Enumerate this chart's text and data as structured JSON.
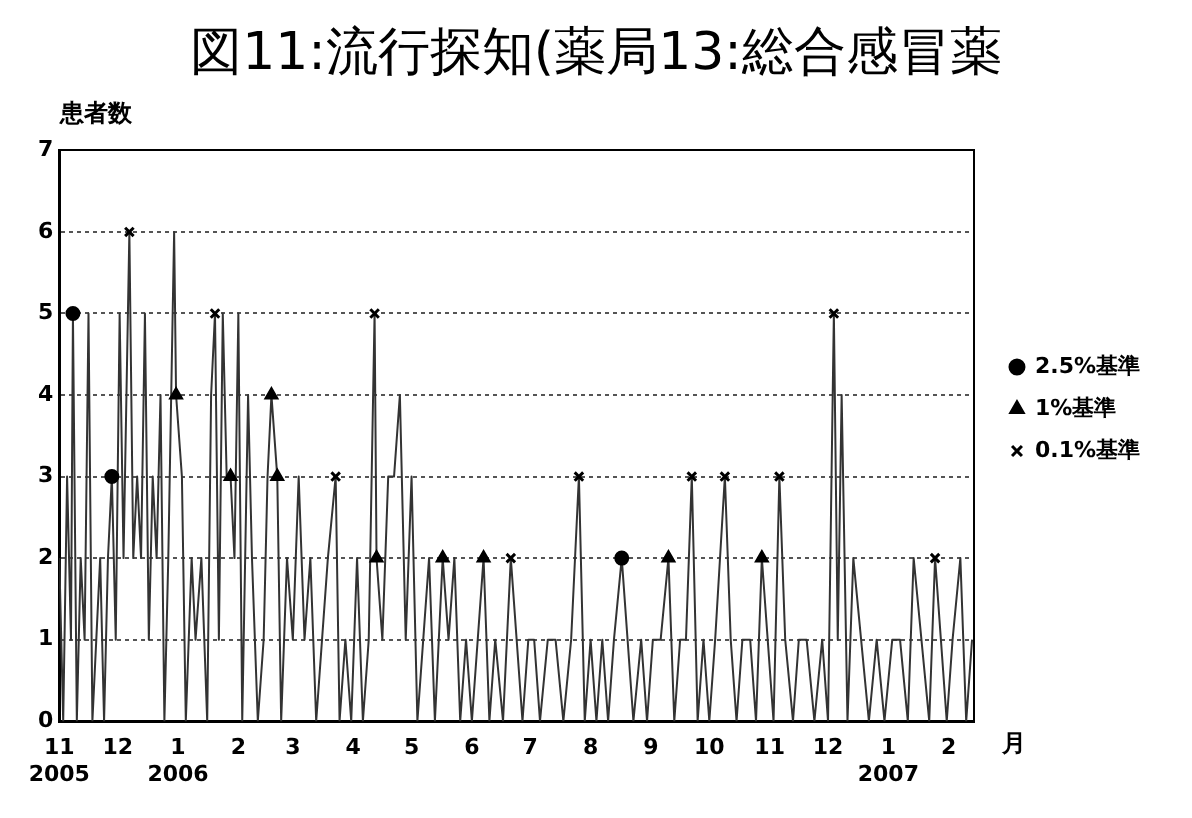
{
  "chart_data": {
    "type": "line",
    "title": "図11:流行探知(薬局13:総合感冒薬",
    "ylabel": "患者数",
    "xlabel": "月",
    "xlim": [
      "2005-11-01",
      "2007-02-14"
    ],
    "xticks": [
      {
        "value": "2005-11-01",
        "label": "11\n2005"
      },
      {
        "value": "2005-12-01",
        "label": "12"
      },
      {
        "value": "2006-01-01",
        "label": "1\n2006"
      },
      {
        "value": "2006-02-01",
        "label": "2"
      },
      {
        "value": "2006-03-01",
        "label": "3"
      },
      {
        "value": "2006-04-01",
        "label": "4"
      },
      {
        "value": "2006-05-01",
        "label": "5"
      },
      {
        "value": "2006-06-01",
        "label": "6"
      },
      {
        "value": "2006-07-01",
        "label": "7"
      },
      {
        "value": "2006-08-01",
        "label": "8"
      },
      {
        "value": "2006-09-01",
        "label": "9"
      },
      {
        "value": "2006-10-01",
        "label": "10"
      },
      {
        "value": "2006-11-01",
        "label": "11"
      },
      {
        "value": "2006-12-01",
        "label": "12"
      },
      {
        "value": "2007-01-01",
        "label": "1\n2007"
      },
      {
        "value": "2007-02-01",
        "label": "2"
      }
    ],
    "ylim": [
      0,
      7
    ],
    "yticks": [
      0,
      1,
      2,
      3,
      4,
      5,
      6,
      7
    ],
    "grid": "y",
    "legend": "right",
    "series": [
      {
        "type": "line",
        "color": "#333333",
        "marker": "none",
        "x": [
          "2005-11-01",
          "2005-11-03",
          "2005-11-05",
          "2005-11-07",
          "2005-11-08",
          "2005-11-10",
          "2005-11-12",
          "2005-11-14",
          "2005-11-16",
          "2005-11-18",
          "2005-11-20",
          "2005-11-22",
          "2005-11-24",
          "2005-11-26",
          "2005-11-28",
          "2005-11-30",
          "2005-12-02",
          "2005-12-04",
          "2005-12-07",
          "2005-12-09",
          "2005-12-11",
          "2005-12-13",
          "2005-12-15",
          "2005-12-17",
          "2005-12-19",
          "2005-12-21",
          "2005-12-23",
          "2005-12-25",
          "2005-12-27",
          "2005-12-30",
          "2005-12-31",
          "2006-01-03",
          "2006-01-05",
          "2006-01-08",
          "2006-01-10",
          "2006-01-13",
          "2006-01-16",
          "2006-01-18",
          "2006-01-20",
          "2006-01-22",
          "2006-01-24",
          "2006-01-26",
          "2006-01-28",
          "2006-01-30",
          "2006-02-01",
          "2006-02-03",
          "2006-02-06",
          "2006-02-08",
          "2006-02-11",
          "2006-02-14",
          "2006-02-16",
          "2006-02-18",
          "2006-02-21",
          "2006-02-23",
          "2006-02-26",
          "2006-03-01",
          "2006-03-04",
          "2006-03-07",
          "2006-03-10",
          "2006-03-13",
          "2006-03-16",
          "2006-03-19",
          "2006-03-23",
          "2006-03-25",
          "2006-03-28",
          "2006-03-31",
          "2006-04-03",
          "2006-04-06",
          "2006-04-09",
          "2006-04-12",
          "2006-04-13",
          "2006-04-16",
          "2006-04-19",
          "2006-04-22",
          "2006-04-25",
          "2006-04-28",
          "2006-05-01",
          "2006-05-04",
          "2006-05-07",
          "2006-05-10",
          "2006-05-13",
          "2006-05-17",
          "2006-05-20",
          "2006-05-23",
          "2006-05-26",
          "2006-05-29",
          "2006-06-01",
          "2006-06-04",
          "2006-06-07",
          "2006-06-10",
          "2006-06-13",
          "2006-06-17",
          "2006-06-21",
          "2006-06-24",
          "2006-06-27",
          "2006-06-30",
          "2006-07-03",
          "2006-07-06",
          "2006-07-10",
          "2006-07-14",
          "2006-07-18",
          "2006-07-22",
          "2006-07-26",
          "2006-07-29",
          "2006-08-01",
          "2006-08-04",
          "2006-08-07",
          "2006-08-10",
          "2006-08-13",
          "2006-08-17",
          "2006-08-20",
          "2006-08-23",
          "2006-08-27",
          "2006-08-30",
          "2006-09-02",
          "2006-09-06",
          "2006-09-10",
          "2006-09-13",
          "2006-09-16",
          "2006-09-19",
          "2006-09-22",
          "2006-09-25",
          "2006-09-28",
          "2006-10-01",
          "2006-10-04",
          "2006-10-09",
          "2006-10-12",
          "2006-10-15",
          "2006-10-18",
          "2006-10-22",
          "2006-10-25",
          "2006-10-28",
          "2006-10-31",
          "2006-11-03",
          "2006-11-06",
          "2006-11-09",
          "2006-11-13",
          "2006-11-16",
          "2006-11-20",
          "2006-11-24",
          "2006-11-28",
          "2006-12-01",
          "2006-12-04",
          "2006-12-06",
          "2006-12-08",
          "2006-12-11",
          "2006-12-14",
          "2006-12-18",
          "2006-12-22",
          "2006-12-26",
          "2006-12-30",
          "2007-01-03",
          "2007-01-07",
          "2007-01-11",
          "2007-01-14",
          "2007-01-18",
          "2007-01-22",
          "2007-01-25",
          "2007-01-28",
          "2007-01-31",
          "2007-02-03",
          "2007-02-07",
          "2007-02-10",
          "2007-02-13"
        ],
        "values": [
          2,
          0,
          3,
          1,
          5,
          0,
          2,
          1,
          5,
          0,
          1,
          2,
          0,
          2,
          3,
          1,
          5,
          2,
          6,
          2,
          3,
          2,
          5,
          1,
          3,
          2,
          4,
          0,
          2,
          6,
          4,
          3,
          0,
          2,
          1,
          2,
          0,
          4,
          5,
          1,
          5,
          3,
          3,
          2,
          5,
          0,
          4,
          2,
          0,
          1,
          3,
          4,
          3,
          0,
          2,
          1,
          3,
          1,
          2,
          0,
          1,
          2,
          3,
          0,
          1,
          0,
          2,
          0,
          1,
          5,
          2,
          1,
          3,
          3,
          4,
          1,
          3,
          0,
          1,
          2,
          0,
          2,
          1,
          2,
          0,
          1,
          0,
          1,
          2,
          0,
          1,
          0,
          2,
          1,
          0,
          1,
          1,
          0,
          1,
          1,
          0,
          1,
          3,
          0,
          1,
          0,
          1,
          0,
          1,
          2,
          1,
          0,
          1,
          0,
          1,
          1,
          2,
          0,
          1,
          1,
          3,
          0,
          1,
          0,
          1,
          3,
          1,
          0,
          1,
          1,
          0,
          2,
          1,
          0,
          3,
          1,
          0,
          1,
          1,
          0,
          1,
          0,
          5,
          1,
          4,
          0,
          2,
          1,
          0,
          1,
          0,
          1,
          1,
          0,
          2,
          1,
          0,
          2,
          1,
          0,
          1,
          2,
          0,
          1
        ]
      },
      {
        "type": "scatter",
        "name": "2.5%基準",
        "color": "#000000",
        "marker": "circle",
        "x": [
          "2005-11-08",
          "2005-11-28",
          "2006-08-17"
        ],
        "values": [
          5,
          3,
          2
        ]
      },
      {
        "type": "scatter",
        "name": "1%基準",
        "color": "#000000",
        "marker": "triangle",
        "x": [
          "2005-12-31",
          "2006-01-28",
          "2006-02-18",
          "2006-02-21",
          "2006-04-13",
          "2006-05-17",
          "2006-06-07",
          "2006-09-10",
          "2006-10-28"
        ],
        "values": [
          4,
          3,
          4,
          3,
          2,
          2,
          2,
          2,
          2
        ]
      },
      {
        "type": "scatter",
        "name": "0.1%基準",
        "color": "#000000",
        "marker": "cross",
        "x": [
          "2005-12-07",
          "2006-01-20",
          "2006-03-23",
          "2006-04-12",
          "2006-06-21",
          "2006-07-26",
          "2006-09-22",
          "2006-10-09",
          "2006-11-06",
          "2006-12-04",
          "2007-01-25"
        ],
        "values": [
          6,
          5,
          3,
          5,
          2,
          3,
          3,
          3,
          3,
          5,
          2
        ]
      }
    ]
  }
}
